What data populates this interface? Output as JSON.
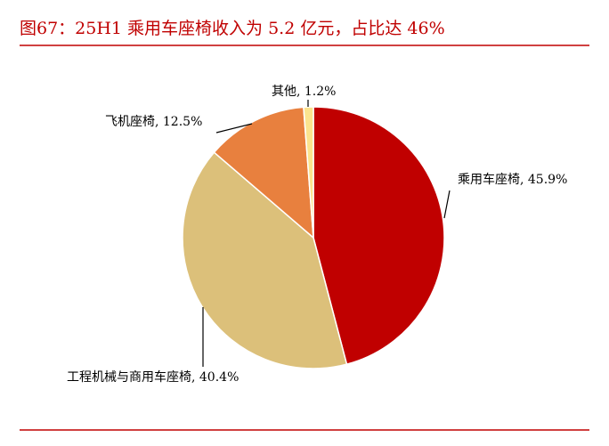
{
  "chart_data": {
    "type": "pie",
    "title": "图67：25H1 乘用车座椅收入为 5.2 亿元，占比达 46%",
    "values": [
      45.9,
      40.4,
      12.5,
      1.2
    ],
    "value_labels": [
      "乘用车座椅, 45.9%",
      "工程机械与商用车座椅, 40.4%",
      "飞机座椅, 12.5%",
      "其他, 1.2%"
    ],
    "colors": [
      "#c00000",
      "#dcc07a",
      "#e8803e",
      "#fbe38e"
    ]
  }
}
